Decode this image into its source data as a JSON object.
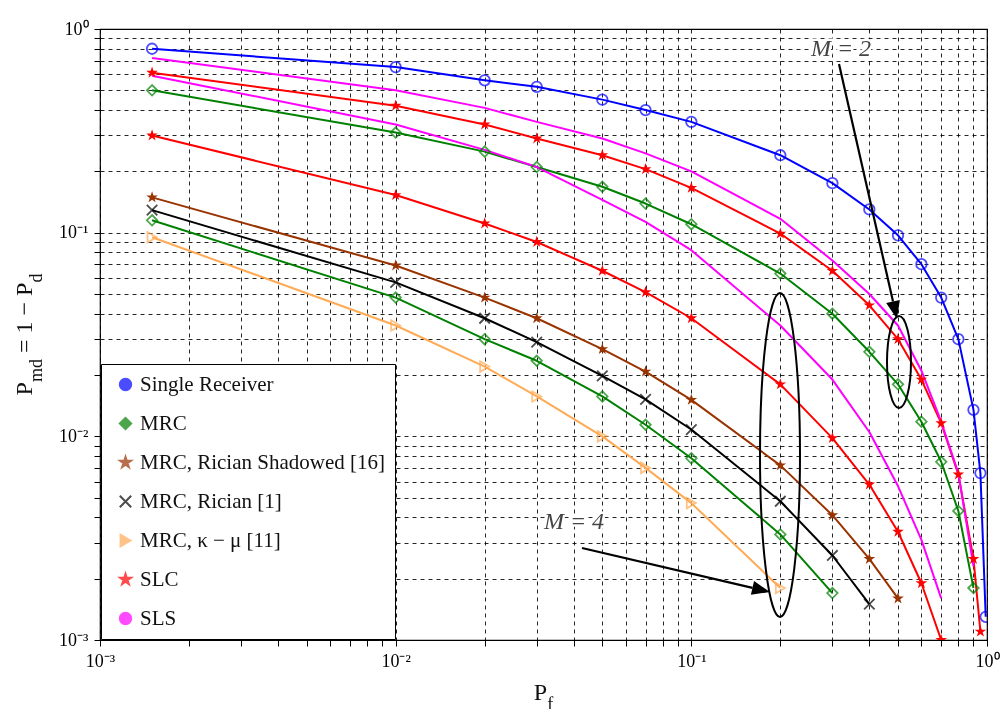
{
  "chart_data": {
    "type": "line",
    "xlabel": "P$_{f}$",
    "ylabel": "P$_{md}$ = 1 − P$_{d}$",
    "log": "xy",
    "grid": true,
    "legend": "bottom left",
    "line_style": "solid",
    "xlim": [
      0.001,
      1
    ],
    "ylim": [
      0.001,
      1
    ],
    "xticks": [
      {
        "value": 0.001,
        "label": "10⁻³"
      },
      {
        "value": 0.002,
        "label": null
      },
      {
        "value": 0.003,
        "label": null
      },
      {
        "value": 0.004,
        "label": null
      },
      {
        "value": 0.005,
        "label": null
      },
      {
        "value": 0.006,
        "label": null
      },
      {
        "value": 0.007,
        "label": null
      },
      {
        "value": 0.008,
        "label": null
      },
      {
        "value": 0.009,
        "label": null
      },
      {
        "value": 0.01,
        "label": "10⁻²"
      },
      {
        "value": 0.02,
        "label": null
      },
      {
        "value": 0.03,
        "label": null
      },
      {
        "value": 0.04,
        "label": null
      },
      {
        "value": 0.05,
        "label": null
      },
      {
        "value": 0.06,
        "label": null
      },
      {
        "value": 0.07,
        "label": null
      },
      {
        "value": 0.08,
        "label": null
      },
      {
        "value": 0.09,
        "label": null
      },
      {
        "value": 0.1,
        "label": "10⁻¹"
      },
      {
        "value": 0.2,
        "label": null
      },
      {
        "value": 0.3,
        "label": null
      },
      {
        "value": 0.4,
        "label": null
      },
      {
        "value": 0.5,
        "label": null
      },
      {
        "value": 0.6,
        "label": null
      },
      {
        "value": 0.7,
        "label": null
      },
      {
        "value": 0.8,
        "label": null
      },
      {
        "value": 0.9,
        "label": null
      },
      {
        "value": 1,
        "label": "10⁰"
      }
    ],
    "yticks": [
      {
        "value": 0.001,
        "label": "10⁻³"
      },
      {
        "value": 0.002,
        "label": null
      },
      {
        "value": 0.003,
        "label": null
      },
      {
        "value": 0.004,
        "label": null
      },
      {
        "value": 0.005,
        "label": null
      },
      {
        "value": 0.006,
        "label": null
      },
      {
        "value": 0.007,
        "label": null
      },
      {
        "value": 0.008,
        "label": null
      },
      {
        "value": 0.009,
        "label": null
      },
      {
        "value": 0.01,
        "label": "10⁻²"
      },
      {
        "value": 0.02,
        "label": null
      },
      {
        "value": 0.03,
        "label": null
      },
      {
        "value": 0.04,
        "label": null
      },
      {
        "value": 0.05,
        "label": null
      },
      {
        "value": 0.06,
        "label": null
      },
      {
        "value": 0.07,
        "label": null
      },
      {
        "value": 0.08,
        "label": null
      },
      {
        "value": 0.09,
        "label": null
      },
      {
        "value": 0.1,
        "label": "10⁻¹"
      },
      {
        "value": 0.2,
        "label": null
      },
      {
        "value": 0.3,
        "label": null
      },
      {
        "value": 0.4,
        "label": null
      },
      {
        "value": 0.5,
        "label": null
      },
      {
        "value": 0.6,
        "label": null
      },
      {
        "value": 0.7,
        "label": null
      },
      {
        "value": 0.8,
        "label": null
      },
      {
        "value": 0.9,
        "label": null
      },
      {
        "value": 1,
        "label": "10⁰"
      }
    ],
    "series": [
      {
        "name": "Single Receiver",
        "color": "#0000ff",
        "marker": "circle",
        "x": [
          0.0015,
          0.01,
          0.02,
          0.03,
          0.05,
          0.07,
          0.1,
          0.2,
          0.3,
          0.4,
          0.5,
          0.6,
          0.7,
          0.8,
          0.9,
          0.95,
          0.99
        ],
        "values": [
          0.8,
          0.65,
          0.56,
          0.52,
          0.45,
          0.4,
          0.35,
          0.24,
          0.175,
          0.13,
          0.097,
          0.07,
          0.048,
          0.03,
          0.0135,
          0.0066,
          0.0013
        ]
      },
      {
        "name": "MRC",
        "color": "#008000",
        "marker": "diamond",
        "x": [
          0.0015,
          0.01,
          0.02,
          0.03,
          0.05,
          0.07,
          0.1,
          0.2,
          0.3,
          0.4,
          0.5,
          0.6,
          0.7,
          0.8,
          0.9
        ],
        "values": [
          0.5,
          0.31,
          0.25,
          0.21,
          0.168,
          0.139,
          0.11,
          0.063,
          0.04,
          0.026,
          0.018,
          0.0118,
          0.0075,
          0.0043,
          0.0018
        ]
      },
      {
        "name": "MRC, Rician Shadowed [16]",
        "color": "#993300",
        "marker": "star",
        "x": [
          0.0015,
          0.01,
          0.02,
          0.03,
          0.05,
          0.07,
          0.1,
          0.2,
          0.3,
          0.4,
          0.5
        ],
        "values": [
          0.149,
          0.069,
          0.048,
          0.038,
          0.0268,
          0.0208,
          0.0151,
          0.0072,
          0.0041,
          0.0025,
          0.0016
        ]
      },
      {
        "name": "MRC, Rician [1]",
        "color": "#000000",
        "marker": "cross",
        "x": [
          0.0015,
          0.01,
          0.02,
          0.03,
          0.05,
          0.07,
          0.1,
          0.2,
          0.3,
          0.4
        ],
        "values": [
          0.129,
          0.057,
          0.038,
          0.029,
          0.0198,
          0.0152,
          0.0108,
          0.0048,
          0.0026,
          0.0015
        ]
      },
      {
        "name": "MRC, κ − μ [11]",
        "color": "#ffaa55",
        "marker": "triangle",
        "x": [
          0.0015,
          0.01,
          0.02,
          0.03,
          0.05,
          0.07,
          0.1,
          0.2
        ],
        "values": [
          0.095,
          0.035,
          0.022,
          0.0157,
          0.01,
          0.007,
          0.0047,
          0.0018
        ]
      },
      {
        "name": "SLC",
        "color": "#ff0000",
        "marker": "star",
        "x": [
          0.0015,
          0.01,
          0.02,
          0.03,
          0.05,
          0.07,
          0.1,
          0.2,
          0.3,
          0.4,
          0.5,
          0.6,
          0.7,
          0.8,
          0.9,
          0.95
        ],
        "values": [
          0.61,
          0.42,
          0.34,
          0.29,
          0.24,
          0.205,
          0.166,
          0.099,
          0.065,
          0.044,
          0.03,
          0.019,
          0.0116,
          0.0065,
          0.0025,
          0.0011
        ]
      },
      {
        "name": "SLS",
        "color": "#ff00ff",
        "marker": "none",
        "x": [
          0.0015,
          0.01,
          0.02,
          0.03,
          0.05,
          0.07,
          0.1,
          0.2,
          0.3,
          0.4,
          0.5,
          0.6,
          0.7,
          0.8,
          0.9
        ],
        "values": [
          0.72,
          0.5,
          0.41,
          0.35,
          0.29,
          0.245,
          0.2,
          0.117,
          0.073,
          0.05,
          0.035,
          0.021,
          0.0118,
          0.0066,
          0.0023
        ]
      },
      {
        "color": "#008000",
        "marker": "diamond",
        "x": [
          0.0015,
          0.01,
          0.02,
          0.03,
          0.05,
          0.07,
          0.1,
          0.2,
          0.3
        ],
        "values": [
          0.115,
          0.048,
          0.03,
          0.0235,
          0.0157,
          0.0114,
          0.0078,
          0.0033,
          0.0017
        ]
      },
      {
        "color": "#ff0000",
        "marker": "star",
        "x": [
          0.0015,
          0.01,
          0.02,
          0.03,
          0.05,
          0.07,
          0.1,
          0.2,
          0.3,
          0.4,
          0.5,
          0.6,
          0.7
        ],
        "values": [
          0.3,
          0.153,
          0.111,
          0.09,
          0.065,
          0.051,
          0.038,
          0.018,
          0.0098,
          0.0058,
          0.0034,
          0.0019,
          0.001
        ]
      },
      {
        "color": "#ff00ff",
        "marker": "none",
        "x": [
          0.0015,
          0.01,
          0.02,
          0.03,
          0.05,
          0.07,
          0.1,
          0.2,
          0.3,
          0.4,
          0.5,
          0.6,
          0.7
        ],
        "values": [
          0.59,
          0.34,
          0.255,
          0.21,
          0.145,
          0.113,
          0.082,
          0.035,
          0.019,
          0.0105,
          0.0057,
          0.0031,
          0.0016
        ]
      }
    ],
    "annotations": [
      "M = 2",
      "M = 4"
    ]
  }
}
